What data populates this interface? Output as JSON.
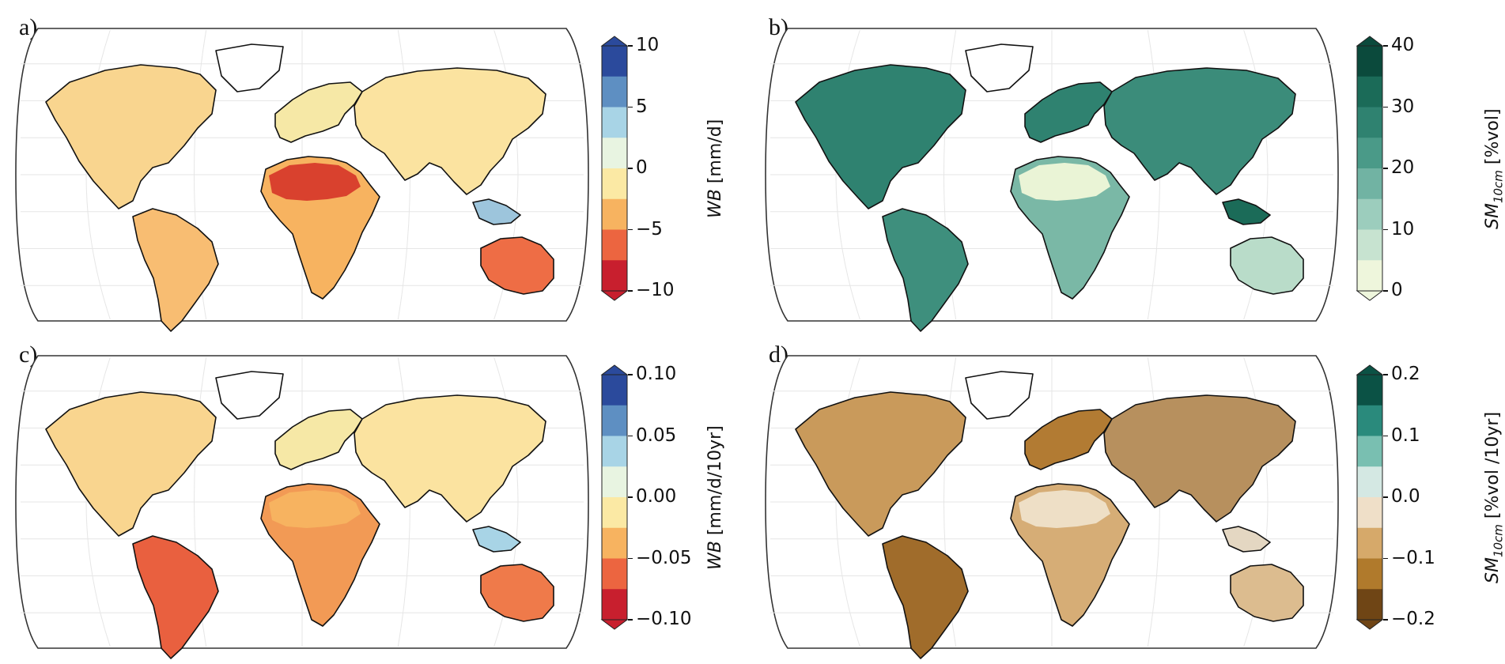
{
  "panels": [
    {
      "label": "a)",
      "colorbar": {
        "label_var": "WB",
        "label_sub": "",
        "label_unit": " [mm/d]",
        "ticks": [
          "10",
          "5",
          "0",
          "−5",
          "−10"
        ],
        "colors": [
          "#2b4a9c",
          "#5e8fc2",
          "#a8d4e6",
          "#e8f4e1",
          "#fbe9a4",
          "#f7b360",
          "#ec6540",
          "#c81f2e"
        ]
      }
    },
    {
      "label": "b)",
      "colorbar": {
        "label_var": "SM",
        "label_sub": "10cm",
        "label_unit": " [%vol]",
        "ticks": [
          "40",
          "30",
          "20",
          "10",
          "0"
        ],
        "colors": [
          "#0b4a3c",
          "#1b6b58",
          "#2f8270",
          "#4a9a88",
          "#71b3a3",
          "#9ccdbd",
          "#c7e3d0",
          "#eef6dc"
        ]
      }
    },
    {
      "label": "c)",
      "colorbar": {
        "label_var": "WB",
        "label_sub": "",
        "label_unit": " [mm/d/10yr]",
        "ticks": [
          "0.10",
          "0.05",
          "0.00",
          "−0.05",
          "−0.10"
        ],
        "colors": [
          "#2b4a9c",
          "#5e8fc2",
          "#a8d4e6",
          "#e8f4e1",
          "#fbe9a4",
          "#f7b360",
          "#ec6540",
          "#c81f2e"
        ]
      }
    },
    {
      "label": "d)",
      "colorbar": {
        "label_var": "SM",
        "label_sub": "10cm",
        "label_unit": " [%vol /10yr]",
        "ticks": [
          "0.2",
          "0.1",
          "0.0",
          "−0.1",
          "−0.2"
        ],
        "colors": [
          "#0b5245",
          "#2a8a7c",
          "#79bfb1",
          "#d4e8e3",
          "#efdfc8",
          "#d6a96a",
          "#b07a2c",
          "#6f4515"
        ]
      }
    }
  ],
  "map_fills": {
    "a": {
      "north_america": "#f9d58f",
      "greenland": "#ffffff",
      "south_america": "#f8bd72",
      "africa": "#f7b360",
      "sahara": "#d9412e",
      "europe": "#f6e8a6",
      "asia": "#fbe3a0",
      "se_asia": "#9dc5dc",
      "australia": "#ee6d45"
    },
    "b": {
      "north_america": "#2f8270",
      "greenland": "#ffffff",
      "south_america": "#3e8f7d",
      "africa": "#7ab8a6",
      "sahara": "#eaf4d6",
      "europe": "#2f8270",
      "asia": "#3b8c7a",
      "se_asia": "#1b6b58",
      "australia": "#b9dcc9"
    },
    "c": {
      "north_america": "#f9d58f",
      "greenland": "#ffffff",
      "south_america": "#e9603f",
      "africa": "#f29a55",
      "sahara": "#f7b360",
      "europe": "#f6e8a6",
      "asia": "#fbe3a0",
      "se_asia": "#a8d4e6",
      "australia": "#ef7a4a"
    },
    "d": {
      "north_america": "#c99a5b",
      "greenland": "#ffffff",
      "south_america": "#a06c2b",
      "africa": "#d6ad76",
      "sahara": "#eedfc6",
      "europe": "#b27b33",
      "asia": "#b7905e",
      "se_asia": "#e4d7c2",
      "australia": "#dcbc8f"
    }
  }
}
